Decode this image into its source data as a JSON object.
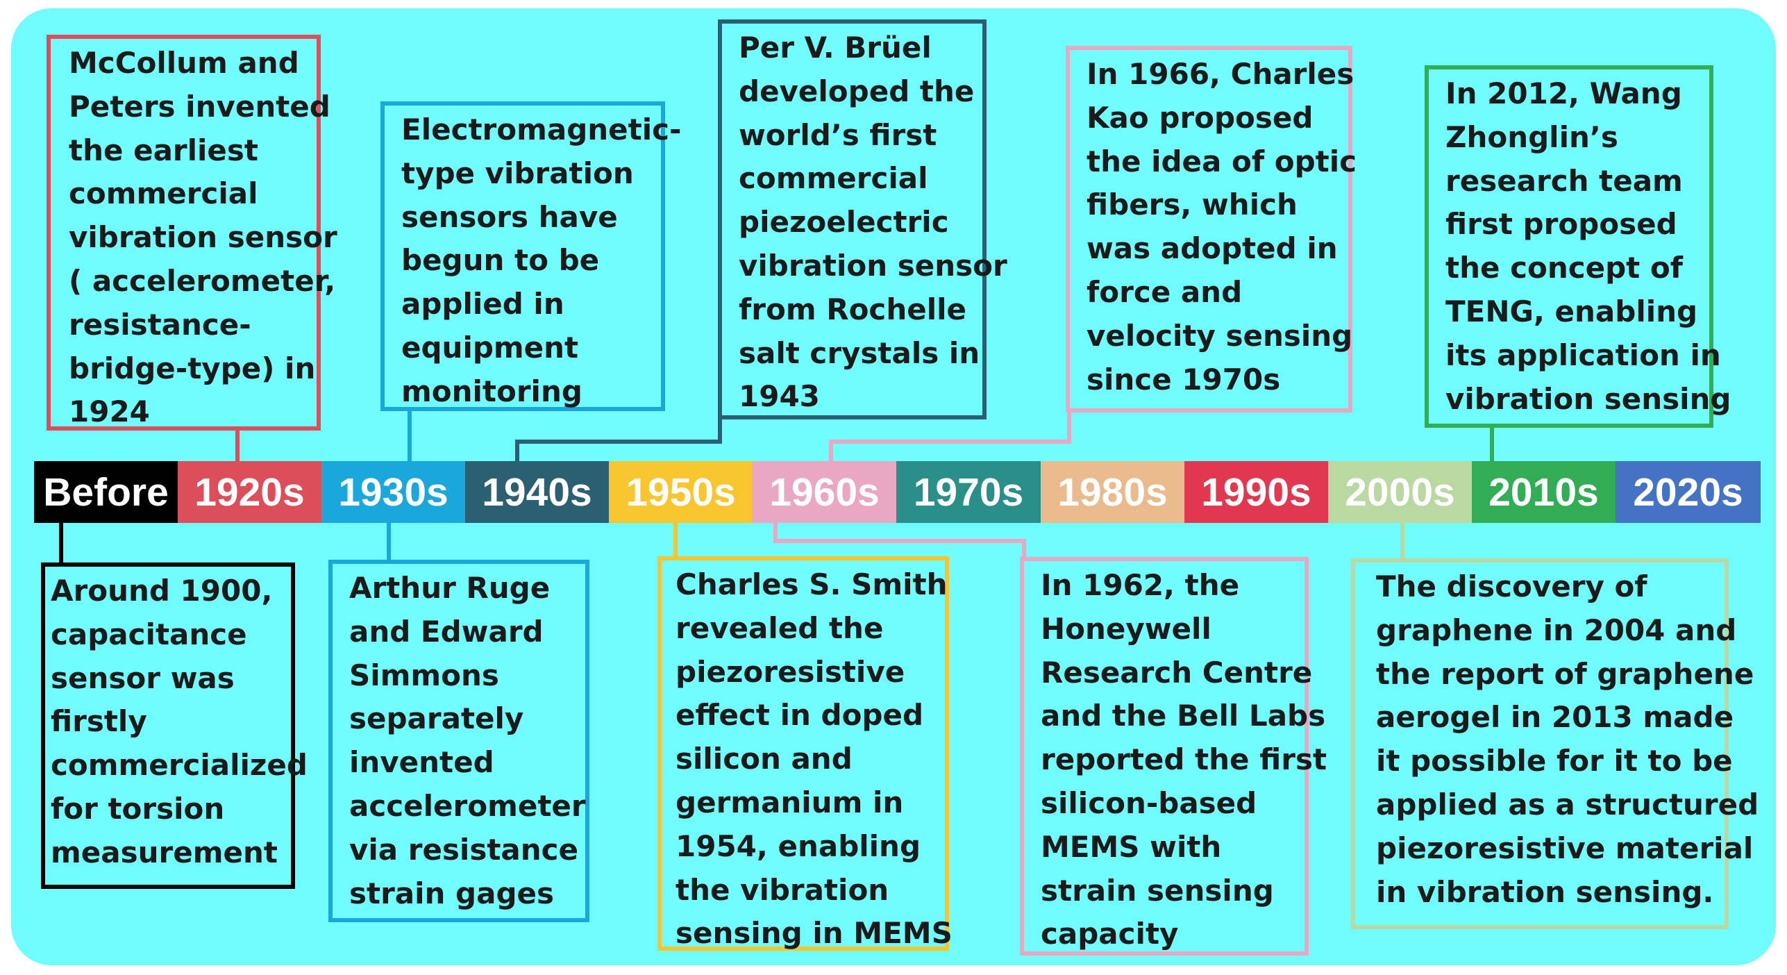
{
  "timeline": {
    "segments": [
      {
        "label": "Before",
        "color": "#000000"
      },
      {
        "label": "1920s",
        "color": "#dc4f5a"
      },
      {
        "label": "1930s",
        "color": "#1aa8dc"
      },
      {
        "label": "1940s",
        "color": "#2d5f72"
      },
      {
        "label": "1950s",
        "color": "#f9c52f"
      },
      {
        "label": "1960s",
        "color": "#eaa7c3"
      },
      {
        "label": "1970s",
        "color": "#2a8f88"
      },
      {
        "label": "1980s",
        "color": "#e9bb8c"
      },
      {
        "label": "1990s",
        "color": "#e1374f"
      },
      {
        "label": "2000s",
        "color": "#b9d8a2"
      },
      {
        "label": "2010s",
        "color": "#32ad55"
      },
      {
        "label": "2020s",
        "color": "#4472c4"
      }
    ]
  },
  "events": {
    "before": {
      "color": "#000000",
      "lines": [
        "Around 1900,",
        "capacitance",
        "sensor was",
        "firstly",
        "commercialized",
        "for torsion",
        "measurement"
      ]
    },
    "e1920s": {
      "color": "#dc4f5a",
      "lines": [
        "McCollum and",
        "Peters invented",
        "the earliest",
        "commercial",
        "vibration sensor",
        "( accelerometer,",
        "resistance-",
        "bridge-type) in",
        "1924"
      ]
    },
    "e1930s_top": {
      "color": "#1aa8dc",
      "lines": [
        "Electromagnetic-",
        "type vibration",
        "sensors have",
        "begun to be",
        "applied in",
        "equipment",
        "monitoring"
      ]
    },
    "e1930s_bottom": {
      "color": "#1aa8dc",
      "lines": [
        "Arthur Ruge",
        "and Edward",
        "Simmons",
        "separately",
        "invented",
        "accelerometer",
        "via resistance",
        "strain gages"
      ]
    },
    "e1940s": {
      "color": "#2d5f72",
      "lines": [
        "Per V. Brüel",
        "developed the",
        "world’s first",
        "commercial",
        "piezoelectric",
        "vibration sensor",
        "from Rochelle",
        "salt crystals in",
        "1943"
      ]
    },
    "e1950s": {
      "color": "#f9c52f",
      "lines": [
        "Charles S. Smith",
        "revealed the",
        "piezoresistive",
        "effect in doped",
        "silicon and",
        "germanium in",
        "1954, enabling",
        "the vibration",
        "sensing in MEMS"
      ]
    },
    "e1960s_top": {
      "color": "#eaa7c3",
      "lines": [
        "In 1966, Charles",
        "Kao proposed",
        "the idea of optic",
        "fibers, which",
        "was adopted in",
        "force and",
        "velocity  sensing",
        "since 1970s"
      ]
    },
    "e1960s_bottom": {
      "color": "#eaa7c3",
      "lines": [
        "In 1962, the",
        "Honeywell",
        "Research Centre",
        "and the Bell Labs",
        "reported the first",
        "silicon-based",
        "MEMS with",
        "strain sensing",
        "capacity"
      ]
    },
    "e2000s": {
      "color": "#b9d8a2",
      "lines": [
        "The discovery of",
        "graphene in 2004 and",
        "the report of graphene",
        "aerogel in 2013 made",
        "it possible for it to be",
        "applied as a structured",
        "piezoresistive material",
        "in vibration sensing."
      ]
    },
    "e2010s": {
      "color": "#32ad55",
      "lines": [
        "In 2012, Wang",
        "Zhonglin’s",
        "research team",
        "first proposed",
        "the concept of",
        "TENG, enabling",
        "its application in",
        "vibration sensing"
      ]
    }
  }
}
